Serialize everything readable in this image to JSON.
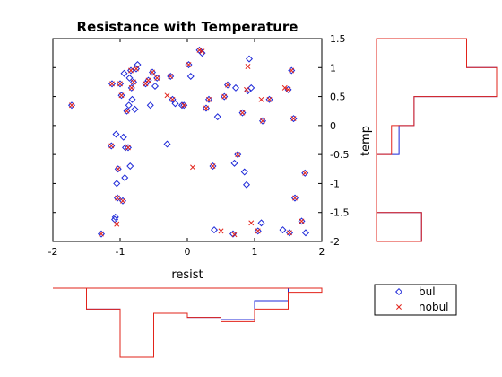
{
  "chart_data": {
    "type": "scatter",
    "title": "Resistance with Temperature",
    "xlabel": "resist",
    "ylabel": "temp",
    "xlim": [
      -2,
      2
    ],
    "ylim": [
      -2,
      1.5
    ],
    "xticks": [
      -2,
      -1,
      0,
      1,
      2
    ],
    "yticks": [
      1.5,
      1,
      0.5,
      0,
      -0.5,
      -1,
      -1.5,
      -2
    ],
    "xtick_labels": [
      "-2",
      "-1",
      "0",
      "1",
      "2"
    ],
    "ytick_labels": [
      "1.5",
      "1",
      "0.5",
      "0",
      "-0.5",
      "-1",
      "-1.5",
      "-2"
    ],
    "grid": false,
    "legend": {
      "position": "bottom-right",
      "entries": [
        "bul",
        "nobul"
      ]
    },
    "colors": {
      "bul": "#1f2ad8",
      "nobul": "#e2231a"
    },
    "series": [
      {
        "name": "bul",
        "marker": "diamond",
        "x": [
          -1.72,
          -1.28,
          -1.13,
          -1.12,
          -1.08,
          -1.07,
          -1.06,
          -1.05,
          -1.04,
          -1.03,
          -1.0,
          -0.98,
          -0.96,
          -0.95,
          -0.94,
          -0.93,
          -0.92,
          -0.9,
          -0.88,
          -0.87,
          -0.86,
          -0.85,
          -0.84,
          -0.83,
          -0.82,
          -0.8,
          -0.78,
          -0.76,
          -0.74,
          -0.62,
          -0.58,
          -0.55,
          -0.52,
          -0.48,
          -0.45,
          -0.3,
          -0.25,
          -0.22,
          -0.18,
          -0.08,
          -0.05,
          0.02,
          0.05,
          0.18,
          0.22,
          0.28,
          0.32,
          0.38,
          0.4,
          0.45,
          0.55,
          0.6,
          0.68,
          0.7,
          0.72,
          0.75,
          0.82,
          0.85,
          0.88,
          0.9,
          0.92,
          0.95,
          1.05,
          1.1,
          1.12,
          1.22,
          1.42,
          1.5,
          1.52,
          1.55,
          1.58,
          1.6,
          1.7,
          1.75,
          1.76
        ],
        "y": [
          0.35,
          -1.87,
          -0.35,
          0.72,
          -1.62,
          -1.58,
          -0.15,
          -1.0,
          -1.25,
          -0.75,
          0.72,
          0.52,
          -1.3,
          -0.2,
          0.9,
          -0.9,
          -0.38,
          0.25,
          -0.38,
          0.35,
          0.82,
          -0.7,
          0.95,
          0.65,
          0.45,
          0.75,
          0.28,
          0.98,
          1.05,
          0.72,
          0.78,
          0.35,
          0.92,
          0.68,
          0.82,
          -0.32,
          0.85,
          0.45,
          0.38,
          0.35,
          0.35,
          1.05,
          0.85,
          1.3,
          1.25,
          0.3,
          0.45,
          -0.7,
          -1.8,
          0.15,
          0.5,
          0.7,
          -1.87,
          -0.65,
          0.65,
          -0.5,
          0.22,
          -0.8,
          -1.02,
          0.6,
          1.15,
          0.65,
          -1.82,
          -1.68,
          0.08,
          0.45,
          -1.8,
          0.62,
          -1.85,
          0.95,
          0.12,
          -1.25,
          -1.65,
          -0.82,
          -1.85
        ]
      },
      {
        "name": "nobul",
        "marker": "x",
        "x": [
          -1.72,
          -1.28,
          -1.13,
          -1.12,
          -1.05,
          -1.04,
          -1.03,
          -1.0,
          -0.98,
          -0.96,
          -0.9,
          -0.88,
          -0.84,
          -0.83,
          -0.8,
          -0.76,
          -0.62,
          -0.58,
          -0.52,
          -0.45,
          -0.3,
          -0.25,
          -0.22,
          -0.05,
          0.02,
          0.08,
          0.18,
          0.22,
          0.28,
          0.32,
          0.38,
          0.5,
          0.55,
          0.6,
          0.7,
          0.75,
          0.82,
          0.88,
          0.9,
          0.95,
          1.05,
          1.1,
          1.12,
          1.22,
          1.45,
          1.5,
          1.52,
          1.55,
          1.58,
          1.6,
          1.7,
          1.75
        ],
        "y": [
          0.35,
          -1.87,
          -0.35,
          0.72,
          -1.7,
          -1.25,
          -0.75,
          0.72,
          0.52,
          -1.3,
          0.25,
          -0.38,
          0.95,
          0.65,
          0.75,
          0.98,
          0.72,
          0.78,
          0.92,
          0.82,
          0.52,
          0.85,
          0.45,
          0.35,
          1.05,
          -0.72,
          1.3,
          1.28,
          0.3,
          0.45,
          -0.7,
          -1.82,
          0.5,
          0.7,
          -1.88,
          -0.5,
          0.22,
          0.62,
          1.02,
          -1.68,
          -1.82,
          0.45,
          0.08,
          0.45,
          0.65,
          0.62,
          -1.85,
          0.95,
          0.12,
          -1.25,
          -1.65,
          -0.82
        ]
      }
    ],
    "marginal_y": {
      "edges": [
        -2,
        -1.5,
        -1.0,
        -0.5,
        0.0,
        0.5,
        1.0,
        1.5
      ],
      "bul": [
        6,
        0,
        0,
        3,
        5,
        16,
        12
      ],
      "nobul": [
        6,
        0,
        0,
        2,
        5,
        16,
        12
      ]
    },
    "marginal_x": {
      "edges": [
        -2,
        -1.5,
        -1.0,
        -0.5,
        0.0,
        0.5,
        1.0,
        1.5,
        2.0
      ],
      "bul": [
        0,
        10,
        33,
        12,
        14,
        15,
        6,
        0
      ],
      "nobul": [
        0,
        10,
        33,
        12,
        14,
        16,
        10,
        2
      ]
    }
  }
}
